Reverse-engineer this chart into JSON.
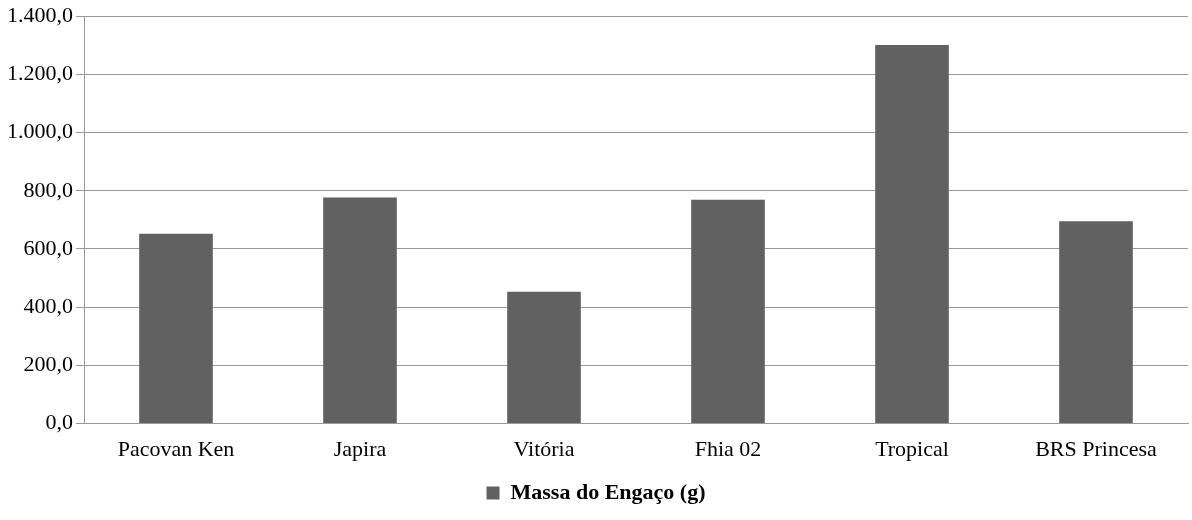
{
  "chart_data": {
    "type": "bar",
    "categories": [
      "Pacovan Ken",
      "Japira",
      "Vitória",
      "Fhia 02",
      "Tropical",
      "BRS Princesa"
    ],
    "series": [
      {
        "name": "Massa do Engaço (g)",
        "color": "#616161",
        "values": [
          652,
          777,
          453,
          769,
          1301,
          695
        ]
      }
    ],
    "ylim": [
      0,
      1400
    ],
    "yticks": [
      {
        "value": 0,
        "label": "0,0"
      },
      {
        "value": 200,
        "label": "200,0"
      },
      {
        "value": 400,
        "label": "400,0"
      },
      {
        "value": 600,
        "label": "600,0"
      },
      {
        "value": 800,
        "label": "800,0"
      },
      {
        "value": 1000,
        "label": "1.000,0"
      },
      {
        "value": 1200,
        "label": "1.200,0"
      },
      {
        "value": 1400,
        "label": "1.400,0"
      }
    ],
    "grid": "y",
    "legend": "bottom"
  }
}
